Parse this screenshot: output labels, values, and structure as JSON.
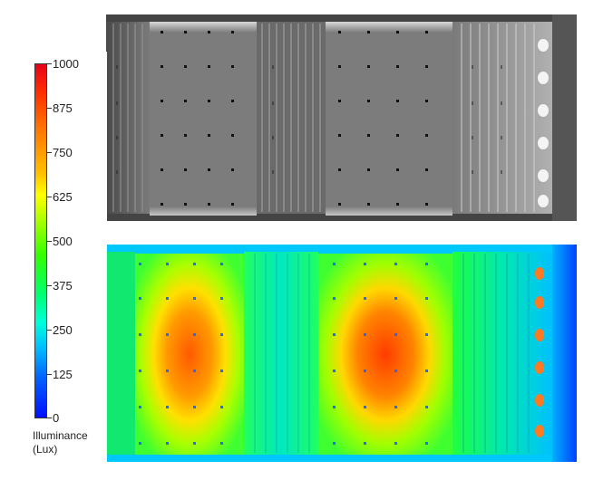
{
  "legend": {
    "ticks": [
      "1000",
      "875",
      "750",
      "625",
      "500",
      "375",
      "250",
      "125",
      "0"
    ],
    "title_line1": "Illuminance",
    "title_line2": "(Lux)"
  },
  "colors": {
    "max": "#e8001a",
    "mid": "#34ff00",
    "min": "#0010ff"
  }
}
